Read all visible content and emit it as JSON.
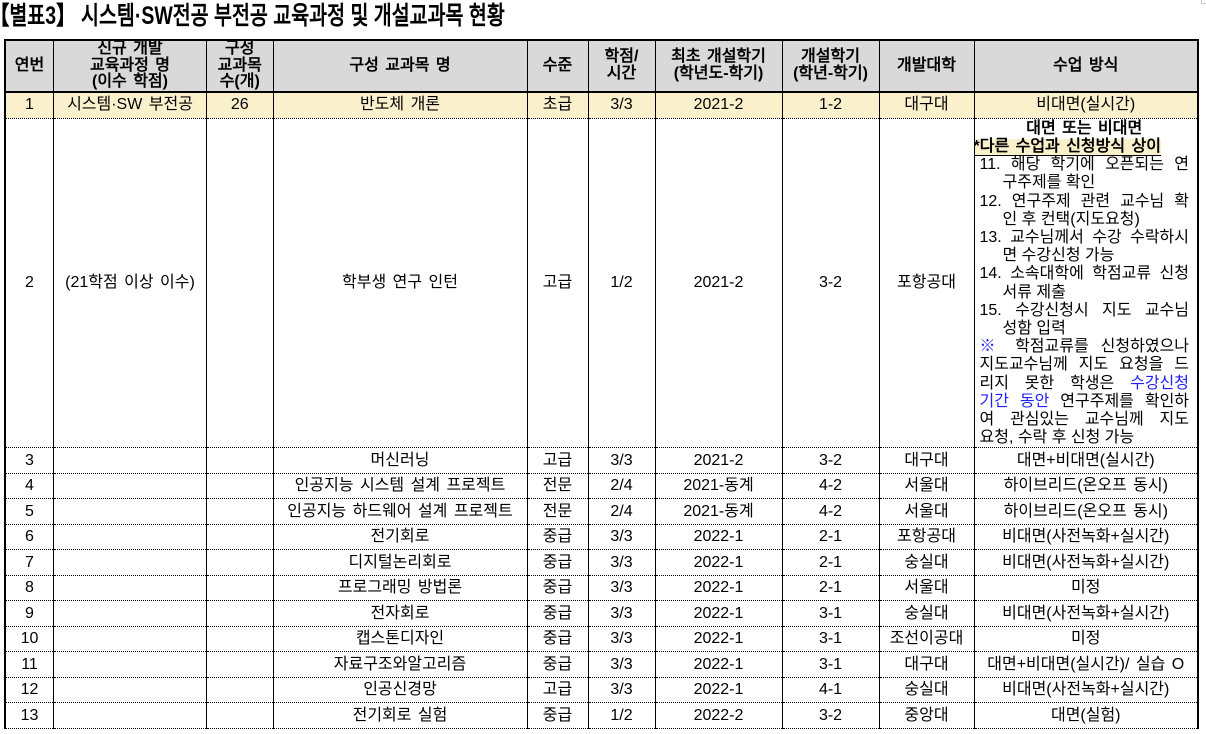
{
  "title": "【별표3】 시스템·SW전공 부전공 교육과정 및 개설교과목 현황",
  "colors": {
    "header_bg": "#d9d9d9",
    "highlight_yellow": "#faf1cc",
    "accent_blue": "#1f1fff",
    "border_black": "#000000"
  },
  "table": {
    "headers": [
      {
        "key": "no",
        "label": "연번"
      },
      {
        "key": "program",
        "label": "신규 개발\n교육과정 명\n(이수 학점)"
      },
      {
        "key": "count",
        "label": "구성\n교과목\n수(개)"
      },
      {
        "key": "course",
        "label": "구성 교과목 명"
      },
      {
        "key": "level",
        "label": "수준"
      },
      {
        "key": "credit",
        "label": "학점/\n시간"
      },
      {
        "key": "first_term",
        "label": "최초 개설학기\n(학년도-학기)"
      },
      {
        "key": "term",
        "label": "개설학기\n(학년-학기)"
      },
      {
        "key": "univ",
        "label": "개발대학"
      },
      {
        "key": "method",
        "label": "수업 방식"
      }
    ],
    "rows": [
      {
        "no": "1",
        "program": "시스템·SW 부전공",
        "count": "26",
        "course": "반도체 개론",
        "level": "초급",
        "credit": "3/3",
        "first_term": "2021-2",
        "term": "1-2",
        "univ": "대구대",
        "method": "비대면(실시간)",
        "highlighted": true
      },
      {
        "no": "2",
        "program": "(21학점 이상 이수)",
        "count": "",
        "course": "학부생 연구 인턴",
        "level": "고급",
        "credit": "1/2",
        "first_term": "2021-2",
        "term": "3-2",
        "univ": "포항공대",
        "method": "",
        "method_rich": true
      },
      {
        "no": "3",
        "program": "",
        "count": "",
        "course": "머신러닝",
        "level": "고급",
        "credit": "3/3",
        "first_term": "2021-2",
        "term": "3-2",
        "univ": "대구대",
        "method": "대면+비대면(실시간)"
      },
      {
        "no": "4",
        "program": "",
        "count": "",
        "course": "인공지능 시스템 설계 프로젝트",
        "level": "전문",
        "credit": "2/4",
        "first_term": "2021-동계",
        "term": "4-2",
        "univ": "서울대",
        "method": "하이브리드(온오프 동시)"
      },
      {
        "no": "5",
        "program": "",
        "count": "",
        "course": "인공지능 하드웨어 설계 프로젝트",
        "level": "전문",
        "credit": "2/4",
        "first_term": "2021-동계",
        "term": "4-2",
        "univ": "서울대",
        "method": "하이브리드(온오프 동시)"
      },
      {
        "no": "6",
        "program": "",
        "count": "",
        "course": "전기회로",
        "level": "중급",
        "credit": "3/3",
        "first_term": "2022-1",
        "term": "2-1",
        "univ": "포항공대",
        "method": "비대면(사전녹화+실시간)"
      },
      {
        "no": "7",
        "program": "",
        "count": "",
        "course": "디지털논리회로",
        "level": "중급",
        "credit": "3/3",
        "first_term": "2022-1",
        "term": "2-1",
        "univ": "숭실대",
        "method": "비대면(사전녹화+실시간)"
      },
      {
        "no": "8",
        "program": "",
        "count": "",
        "course": "프로그래밍 방법론",
        "level": "중급",
        "credit": "3/3",
        "first_term": "2022-1",
        "term": "2-1",
        "univ": "서울대",
        "method": "미정"
      },
      {
        "no": "9",
        "program": "",
        "count": "",
        "course": "전자회로",
        "level": "중급",
        "credit": "3/3",
        "first_term": "2022-1",
        "term": "3-1",
        "univ": "숭실대",
        "method": "비대면(사전녹화+실시간)"
      },
      {
        "no": "10",
        "program": "",
        "count": "",
        "course": "캡스톤디자인",
        "level": "중급",
        "credit": "3/3",
        "first_term": "2022-1",
        "term": "3-1",
        "univ": "조선이공대",
        "method": "미정"
      },
      {
        "no": "11",
        "program": "",
        "count": "",
        "course": "자료구조와알고리즘",
        "level": "중급",
        "credit": "3/3",
        "first_term": "2022-1",
        "term": "3-1",
        "univ": "대구대",
        "method": "대면+비대면(실시간)/ 실습 O"
      },
      {
        "no": "12",
        "program": "",
        "count": "",
        "course": "인공신경망",
        "level": "고급",
        "credit": "3/3",
        "first_term": "2022-1",
        "term": "4-1",
        "univ": "숭실대",
        "method": "비대면(사전녹화+실시간)"
      },
      {
        "no": "13",
        "program": "",
        "count": "",
        "course": "전기회로 실험",
        "level": "중급",
        "credit": "1/2",
        "first_term": "2022-2",
        "term": "3-2",
        "univ": "중앙대",
        "method": "대면(실험)"
      }
    ],
    "method_detail": {
      "heading": "대면 또는 비대면",
      "subheading": "*다른 수업과 신청방식 상이",
      "lines": [
        {
          "segments": [
            {
              "text": "11. 해당 학기에 오픈되는 연"
            }
          ],
          "indent": 0,
          "stretch": true
        },
        {
          "segments": [
            {
              "text": "구주제를 확인"
            }
          ],
          "indent": 1,
          "stretch": false
        },
        {
          "segments": [
            {
              "text": "12. 연구주제 관련 교수님 확"
            }
          ],
          "indent": 0,
          "stretch": true
        },
        {
          "segments": [
            {
              "text": "인 후 컨택(지도요청)"
            }
          ],
          "indent": 1,
          "stretch": false
        },
        {
          "segments": [
            {
              "text": "13. 교수님께서 수강 수락하시"
            }
          ],
          "indent": 0,
          "stretch": true
        },
        {
          "segments": [
            {
              "text": "면 수강신청 가능"
            }
          ],
          "indent": 1,
          "stretch": false
        },
        {
          "segments": [
            {
              "text": "14. 소속대학에 학점교류 신청"
            }
          ],
          "indent": 0,
          "stretch": true
        },
        {
          "segments": [
            {
              "text": "서류 제출"
            }
          ],
          "indent": 1,
          "stretch": false
        },
        {
          "segments": [
            {
              "text": "15. 수강신청시 지도 교수님"
            }
          ],
          "indent": 0,
          "stretch": true
        },
        {
          "segments": [
            {
              "text": "성함 입력"
            }
          ],
          "indent": 1,
          "stretch": false
        },
        {
          "segments": [
            {
              "text": "※",
              "blue": true
            },
            {
              "text": " 학점교류를 신청하였으나"
            }
          ],
          "indent": 0,
          "stretch": true
        },
        {
          "segments": [
            {
              "text": "지도교수님께 지도 요청을 드"
            }
          ],
          "indent": 0,
          "stretch": true
        },
        {
          "segments": [
            {
              "text": "리지 못한 학생은 "
            },
            {
              "text": "수강신청",
              "blue": true
            }
          ],
          "indent": 0,
          "stretch": true
        },
        {
          "segments": [
            {
              "text": "기간 동안",
              "blue": true
            },
            {
              "text": " 연구주제를 확인하"
            }
          ],
          "indent": 0,
          "stretch": true
        },
        {
          "segments": [
            {
              "text": "여 관심있는 교수님께 지도"
            }
          ],
          "indent": 0,
          "stretch": true
        },
        {
          "segments": [
            {
              "text": "요청, 수락 후 신청 가능"
            }
          ],
          "indent": 0,
          "stretch": false
        }
      ]
    }
  }
}
